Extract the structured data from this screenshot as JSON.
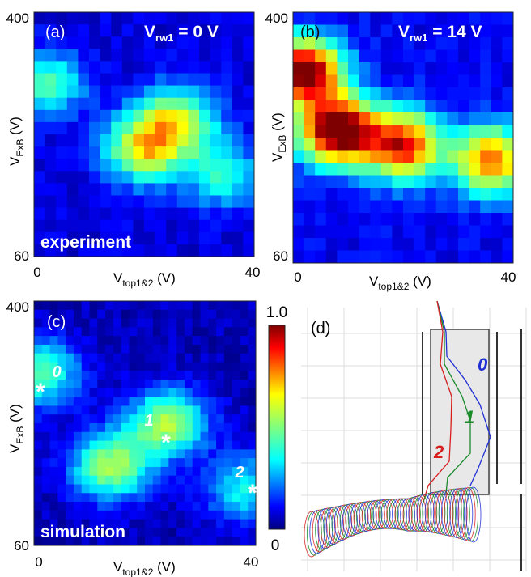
{
  "panels": {
    "a": {
      "tag": "(a)",
      "vrw_prefix": "V",
      "vrw_sub": "rw1",
      "vrw_value": " = 0 V",
      "corner_label": "experiment"
    },
    "b": {
      "tag": "(b)",
      "vrw_prefix": "V",
      "vrw_sub": "rw1",
      "vrw_value": " = 14 V",
      "corner_label": ""
    },
    "c": {
      "tag": "(c)",
      "vrw_prefix": "",
      "vrw_sub": "",
      "vrw_value": "",
      "corner_label": "simulation"
    },
    "d": {
      "tag": "(d)"
    }
  },
  "axes": {
    "y_main": "V",
    "y_sub": "ExB",
    "y_unit": " (V)",
    "x_main": "V",
    "x_sub": "top1&2",
    "x_unit": " (V)",
    "y_ticks": [
      "400",
      "60"
    ],
    "x_ticks": [
      "0",
      "40"
    ]
  },
  "colorbar": {
    "max_label": "1.0",
    "min_label": "0"
  },
  "markers": [
    {
      "label": "0",
      "color": "#ffffff"
    },
    {
      "label": "1",
      "color": "#ffffff"
    },
    {
      "label": "2",
      "color": "#ffffff"
    }
  ],
  "trajectory_labels": [
    {
      "label": "0",
      "color": "#1f2fd6"
    },
    {
      "label": "1",
      "color": "#1a8a2a"
    },
    {
      "label": "2",
      "color": "#d61f1f"
    }
  ],
  "chart_data": [
    {
      "type": "heatmap",
      "panel": "a",
      "xlabel": "Vtop1&2 (V)",
      "ylabel": "VExB (V)",
      "xlim": [
        0,
        40
      ],
      "ylim": [
        60,
        400
      ],
      "rows": 20,
      "cols": 20,
      "peaks": [
        {
          "x": 2,
          "y": 300,
          "amp": 0.35
        },
        {
          "x": 20,
          "y": 210,
          "amp": 0.55
        },
        {
          "x": 26,
          "y": 250,
          "amp": 0.5
        },
        {
          "x": 34,
          "y": 175,
          "amp": 0.3
        }
      ],
      "background": 0.08
    },
    {
      "type": "heatmap",
      "panel": "b",
      "xlabel": "Vtop1&2 (V)",
      "ylabel": "VExB (V)",
      "xlim": [
        0,
        40
      ],
      "ylim": [
        60,
        400
      ],
      "rows": 20,
      "cols": 20,
      "peaks": [
        {
          "x": 2,
          "y": 320,
          "amp": 0.95
        },
        {
          "x": 8,
          "y": 240,
          "amp": 1.0
        },
        {
          "x": 20,
          "y": 220,
          "amp": 0.8
        },
        {
          "x": 36,
          "y": 200,
          "amp": 0.7
        }
      ],
      "background": 0.1
    },
    {
      "type": "heatmap",
      "panel": "c",
      "xlabel": "Vtop1&2 (V)",
      "ylabel": "VExB (V)",
      "xlim": [
        0,
        40
      ],
      "ylim": [
        60,
        400
      ],
      "rows": 28,
      "cols": 28,
      "peaks": [
        {
          "x": 1,
          "y": 300,
          "amp": 0.4
        },
        {
          "x": 24,
          "y": 230,
          "amp": 0.5
        },
        {
          "x": 14,
          "y": 170,
          "amp": 0.5
        },
        {
          "x": 38,
          "y": 140,
          "amp": 0.3
        }
      ],
      "background": 0.05,
      "colorbar_range": [
        0,
        1.0
      ]
    }
  ],
  "colors": {
    "jet": [
      "#00007f",
      "#0000ff",
      "#007fff",
      "#00ffff",
      "#7fff7f",
      "#ffff00",
      "#ff7f00",
      "#ff0000",
      "#7f0000"
    ],
    "traj_blue": "#1f2fd6",
    "traj_green": "#1a8a2a",
    "traj_red": "#d61f1f"
  }
}
